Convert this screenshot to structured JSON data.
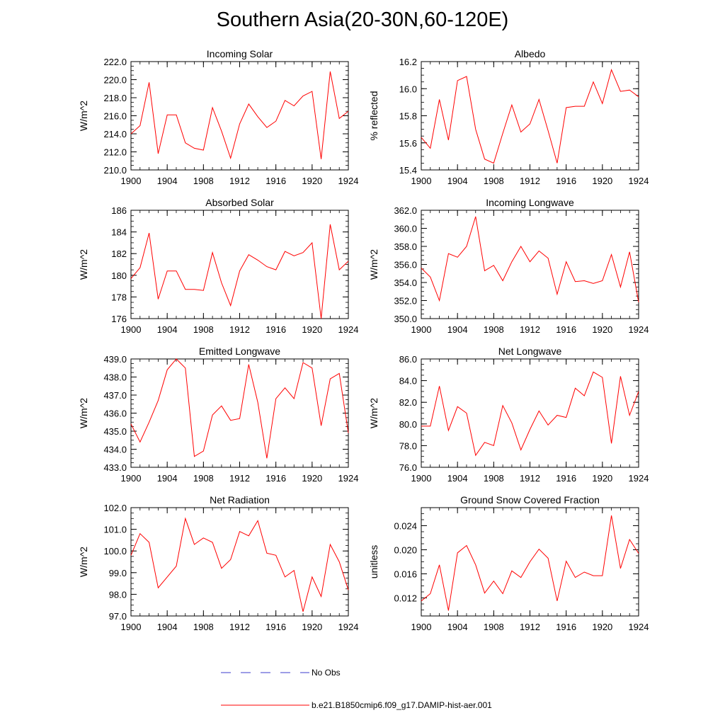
{
  "title": "Southern Asia(20-30N,60-120E)",
  "legend": {
    "obs_label": "No Obs",
    "model_label": "b.e21.B1850cmip6.f09_g17.DAMIP-hist-aer.001",
    "obs_color": "#3b3bcc",
    "model_color": "#ff0000"
  },
  "chart_data": [
    {
      "type": "line",
      "title": "Incoming Solar",
      "ylabel": "W/m^2",
      "x": [
        1900,
        1901,
        1902,
        1903,
        1904,
        1905,
        1906,
        1907,
        1908,
        1909,
        1910,
        1911,
        1912,
        1913,
        1914,
        1915,
        1916,
        1917,
        1918,
        1919,
        1920,
        1921,
        1922,
        1923,
        1924
      ],
      "series": [
        {
          "values": [
            214.0,
            214.9,
            219.7,
            211.8,
            216.1,
            216.1,
            213.0,
            212.4,
            212.2,
            216.9,
            214.3,
            211.3,
            215.1,
            217.3,
            215.9,
            214.7,
            215.4,
            217.7,
            217.1,
            218.2,
            218.7,
            211.2,
            220.9,
            215.7,
            216.5
          ]
        }
      ],
      "xlim": [
        1900,
        1924
      ],
      "ylim": [
        210.0,
        222.0
      ],
      "xticks": [
        "1900",
        "1904",
        "1908",
        "1912",
        "1916",
        "1920",
        "1924"
      ],
      "yticks": [
        "210.0",
        "212.0",
        "214.0",
        "216.0",
        "218.0",
        "220.0",
        "222.0"
      ]
    },
    {
      "type": "line",
      "title": "Albedo",
      "ylabel": "% reflected",
      "x": [
        1900,
        1901,
        1902,
        1903,
        1904,
        1905,
        1906,
        1907,
        1908,
        1909,
        1910,
        1911,
        1912,
        1913,
        1914,
        1915,
        1916,
        1917,
        1918,
        1919,
        1920,
        1921,
        1922,
        1923,
        1924
      ],
      "series": [
        {
          "values": [
            15.64,
            15.56,
            15.92,
            15.62,
            16.06,
            16.09,
            15.7,
            15.48,
            15.45,
            15.67,
            15.88,
            15.68,
            15.74,
            15.92,
            15.69,
            15.45,
            15.86,
            15.87,
            15.87,
            16.05,
            15.89,
            16.14,
            15.98,
            15.99,
            15.94
          ]
        }
      ],
      "xlim": [
        1900,
        1924
      ],
      "ylim": [
        15.4,
        16.2
      ],
      "xticks": [
        "1900",
        "1904",
        "1908",
        "1912",
        "1916",
        "1920",
        "1924"
      ],
      "yticks": [
        "15.4",
        "15.6",
        "15.8",
        "16.0",
        "16.2"
      ]
    },
    {
      "type": "line",
      "title": "Absorbed Solar",
      "ylabel": "W/m^2",
      "x": [
        1900,
        1901,
        1902,
        1903,
        1904,
        1905,
        1906,
        1907,
        1908,
        1909,
        1910,
        1911,
        1912,
        1913,
        1914,
        1915,
        1916,
        1917,
        1918,
        1919,
        1920,
        1921,
        1922,
        1923,
        1924
      ],
      "series": [
        {
          "values": [
            179.7,
            180.7,
            183.9,
            177.8,
            180.4,
            180.4,
            178.7,
            178.7,
            178.6,
            182.1,
            179.3,
            177.2,
            180.4,
            181.9,
            181.4,
            180.8,
            180.5,
            182.2,
            181.8,
            182.1,
            183.0,
            176.0,
            184.7,
            180.5,
            181.3
          ]
        }
      ],
      "xlim": [
        1900,
        1924
      ],
      "ylim": [
        176,
        186
      ],
      "xticks": [
        "1900",
        "1904",
        "1908",
        "1912",
        "1916",
        "1920",
        "1924"
      ],
      "yticks": [
        "176",
        "178",
        "180",
        "182",
        "184",
        "186"
      ]
    },
    {
      "type": "line",
      "title": "Incoming Longwave",
      "ylabel": "W/m^2",
      "x": [
        1900,
        1901,
        1902,
        1903,
        1904,
        1905,
        1906,
        1907,
        1908,
        1909,
        1910,
        1911,
        1912,
        1913,
        1914,
        1915,
        1916,
        1917,
        1918,
        1919,
        1920,
        1921,
        1922,
        1923,
        1924
      ],
      "series": [
        {
          "values": [
            355.6,
            354.6,
            352.0,
            357.2,
            356.8,
            358.0,
            361.3,
            355.3,
            355.9,
            354.2,
            356.3,
            358.0,
            356.3,
            357.5,
            356.7,
            352.7,
            356.3,
            354.1,
            354.2,
            353.9,
            354.2,
            357.1,
            353.5,
            357.4,
            351.8
          ]
        }
      ],
      "xlim": [
        1900,
        1924
      ],
      "ylim": [
        350.0,
        362.0
      ],
      "xticks": [
        "1900",
        "1904",
        "1908",
        "1912",
        "1916",
        "1920",
        "1924"
      ],
      "yticks": [
        "350.0",
        "352.0",
        "354.0",
        "356.0",
        "358.0",
        "360.0",
        "362.0"
      ]
    },
    {
      "type": "line",
      "title": "Emitted Longwave",
      "ylabel": "W/m^2",
      "x": [
        1900,
        1901,
        1902,
        1903,
        1904,
        1905,
        1906,
        1907,
        1908,
        1909,
        1910,
        1911,
        1912,
        1913,
        1914,
        1915,
        1916,
        1917,
        1918,
        1919,
        1920,
        1921,
        1922,
        1923,
        1924
      ],
      "series": [
        {
          "values": [
            435.4,
            434.4,
            435.5,
            436.7,
            438.4,
            439.0,
            438.5,
            433.6,
            433.9,
            435.9,
            436.4,
            435.6,
            435.7,
            438.7,
            436.6,
            433.5,
            436.8,
            437.4,
            436.8,
            438.8,
            438.5,
            435.3,
            437.9,
            438.2,
            434.9
          ]
        }
      ],
      "xlim": [
        1900,
        1924
      ],
      "ylim": [
        433.0,
        439.0
      ],
      "xticks": [
        "1900",
        "1904",
        "1908",
        "1912",
        "1916",
        "1920",
        "1924"
      ],
      "yticks": [
        "433.0",
        "434.0",
        "435.0",
        "436.0",
        "437.0",
        "438.0",
        "439.0"
      ]
    },
    {
      "type": "line",
      "title": "Net Longwave",
      "ylabel": "W/m^2",
      "x": [
        1900,
        1901,
        1902,
        1903,
        1904,
        1905,
        1906,
        1907,
        1908,
        1909,
        1910,
        1911,
        1912,
        1913,
        1914,
        1915,
        1916,
        1917,
        1918,
        1919,
        1920,
        1921,
        1922,
        1923,
        1924
      ],
      "series": [
        {
          "values": [
            79.8,
            79.8,
            83.5,
            79.4,
            81.6,
            81.0,
            77.1,
            78.3,
            78.0,
            81.7,
            80.1,
            77.6,
            79.5,
            81.2,
            79.9,
            80.8,
            80.6,
            83.3,
            82.6,
            84.8,
            84.3,
            78.2,
            84.4,
            80.8,
            83.0
          ]
        }
      ],
      "xlim": [
        1900,
        1924
      ],
      "ylim": [
        76.0,
        86.0
      ],
      "xticks": [
        "1900",
        "1904",
        "1908",
        "1912",
        "1916",
        "1920",
        "1924"
      ],
      "yticks": [
        "76.0",
        "78.0",
        "80.0",
        "82.0",
        "84.0",
        "86.0"
      ]
    },
    {
      "type": "line",
      "title": "Net Radiation",
      "ylabel": "W/m^2",
      "x": [
        1900,
        1901,
        1902,
        1903,
        1904,
        1905,
        1906,
        1907,
        1908,
        1909,
        1910,
        1911,
        1912,
        1913,
        1914,
        1915,
        1916,
        1917,
        1918,
        1919,
        1920,
        1921,
        1922,
        1923,
        1924
      ],
      "series": [
        {
          "values": [
            99.8,
            100.8,
            100.4,
            98.3,
            98.8,
            99.3,
            101.5,
            100.3,
            100.6,
            100.4,
            99.2,
            99.6,
            100.9,
            100.7,
            101.4,
            99.9,
            99.8,
            98.8,
            99.1,
            97.2,
            98.8,
            97.9,
            100.3,
            99.5,
            98.2
          ]
        }
      ],
      "xlim": [
        1900,
        1924
      ],
      "ylim": [
        97.0,
        102.0
      ],
      "xticks": [
        "1900",
        "1904",
        "1908",
        "1912",
        "1916",
        "1920",
        "1924"
      ],
      "yticks": [
        "97.0",
        "98.0",
        "99.0",
        "100.0",
        "101.0",
        "102.0"
      ]
    },
    {
      "type": "line",
      "title": "Ground Snow Covered Fraction",
      "ylabel": "unitless",
      "x": [
        1900,
        1901,
        1902,
        1903,
        1904,
        1905,
        1906,
        1907,
        1908,
        1909,
        1910,
        1911,
        1912,
        1913,
        1914,
        1915,
        1916,
        1917,
        1918,
        1919,
        1920,
        1921,
        1922,
        1923,
        1924
      ],
      "series": [
        {
          "values": [
            0.0115,
            0.0127,
            0.0175,
            0.0099,
            0.0195,
            0.0207,
            0.0175,
            0.0128,
            0.0148,
            0.0127,
            0.0165,
            0.0154,
            0.018,
            0.0201,
            0.0186,
            0.0115,
            0.0181,
            0.0154,
            0.0163,
            0.0157,
            0.0157,
            0.0257,
            0.0169,
            0.0217,
            0.0194
          ]
        }
      ],
      "xlim": [
        1900,
        1924
      ],
      "ylim": [
        0.009,
        0.027
      ],
      "xticks": [
        "1900",
        "1904",
        "1908",
        "1912",
        "1916",
        "1920",
        "1924"
      ],
      "yticks": [
        "0.012",
        "0.016",
        "0.020",
        "0.024"
      ]
    }
  ]
}
